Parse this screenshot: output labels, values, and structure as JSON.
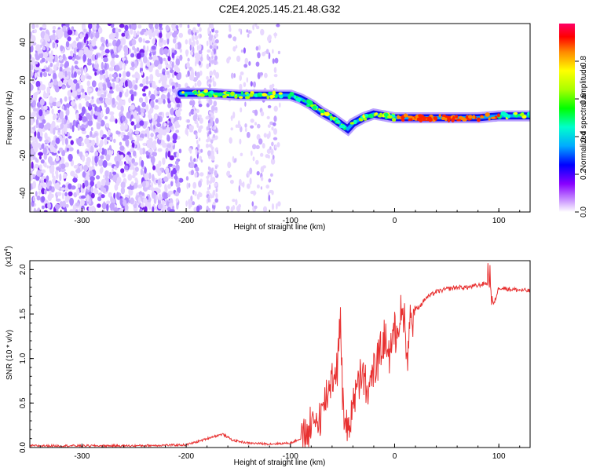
{
  "title": "C2E4.2025.145.21.48.G32",
  "chart_data": [
    {
      "type": "heatmap",
      "xlabel": "Height of straight line (km)",
      "ylabel": "Frequency (Hz)",
      "xlim": [
        -350,
        130
      ],
      "ylim": [
        -50,
        50
      ],
      "x_ticks": [
        -300,
        -200,
        -100,
        0,
        100
      ],
      "y_ticks": [
        -40,
        -20,
        0,
        20,
        40
      ],
      "colorbar": {
        "label": "Normalized spectral amplitude",
        "range": [
          0,
          1
        ],
        "ticks": [
          0.0,
          0.2,
          0.4,
          0.6,
          0.8
        ]
      },
      "ridge": {
        "x": [
          -205,
          -180,
          -150,
          -120,
          -100,
          -90,
          -80,
          -70,
          -60,
          -50,
          -45,
          -40,
          -30,
          -20,
          -10,
          0,
          20,
          50,
          80,
          100,
          130
        ],
        "freq": [
          13,
          13,
          12,
          12,
          12,
          10,
          7,
          3,
          0,
          -4,
          -6,
          -3,
          0,
          2,
          1,
          0,
          0,
          0,
          0,
          1,
          1
        ]
      },
      "noise_region_x": [
        -350,
        -110
      ]
    },
    {
      "type": "line",
      "xlabel": "Height of straight line (km)",
      "ylabel": "SNR (10 * v/v)",
      "scale_label": "(x10",
      "scale_exponent": "4",
      "scale_close": ")",
      "xlim": [
        -350,
        130
      ],
      "ylim": [
        0,
        2.1
      ],
      "x_ticks": [
        -300,
        -200,
        -100,
        0,
        100
      ],
      "y_ticks": [
        0.0,
        0.5,
        1.0,
        1.5,
        2.0
      ],
      "series": [
        {
          "color": "#e83030",
          "x": [
            -350,
            -250,
            -200,
            -185,
            -175,
            -165,
            -155,
            -140,
            -120,
            -100,
            -90,
            -80,
            -70,
            -65,
            -60,
            -55,
            -52,
            -50,
            -48,
            -45,
            -40,
            -35,
            -30,
            -25,
            -20,
            -15,
            -10,
            -5,
            0,
            5,
            10,
            12,
            15,
            20,
            25,
            30,
            40,
            50,
            60,
            70,
            80,
            88,
            92,
            95,
            100,
            110,
            120,
            130
          ],
          "y": [
            0.02,
            0.02,
            0.03,
            0.08,
            0.12,
            0.15,
            0.08,
            0.05,
            0.04,
            0.05,
            0.1,
            0.2,
            0.4,
            0.6,
            0.8,
            0.9,
            1.5,
            0.6,
            0.3,
            0.2,
            0.5,
            0.7,
            0.8,
            0.6,
            0.9,
            1.0,
            1.2,
            1.1,
            1.3,
            1.45,
            1.5,
            0.9,
            1.5,
            1.55,
            1.6,
            1.68,
            1.75,
            1.78,
            1.8,
            1.8,
            1.82,
            1.85,
            1.8,
            1.6,
            1.8,
            1.78,
            1.77,
            1.76
          ]
        }
      ]
    }
  ]
}
